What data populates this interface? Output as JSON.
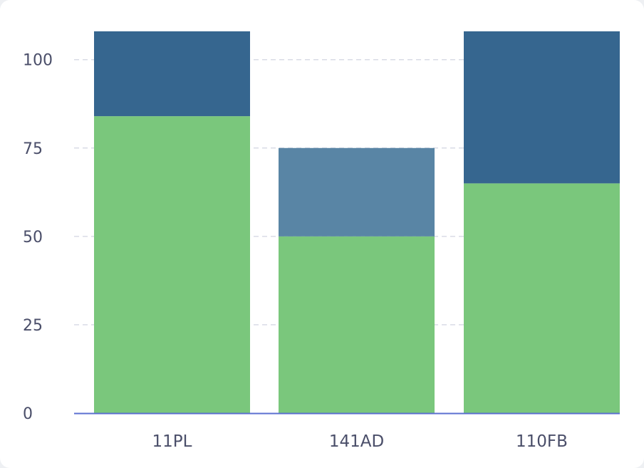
{
  "chart_data": {
    "type": "bar",
    "stacked": true,
    "categories": [
      "11PL",
      "141AD",
      "110FB"
    ],
    "series": [
      {
        "values": [
          84,
          50,
          65
        ],
        "color": "#7ac77c"
      },
      {
        "values": [
          24,
          25,
          43
        ],
        "colors": [
          "#36668f",
          "#5985a5",
          "#36668f"
        ]
      }
    ],
    "y_ticks": [
      "0",
      "25",
      "50",
      "75",
      "100"
    ],
    "y_tick_values": [
      0,
      25,
      50,
      75,
      100
    ],
    "ylim": [
      0,
      108
    ],
    "grid": true,
    "grid_color": "#d9dbe6",
    "axis_color": "#5b6fd0"
  }
}
